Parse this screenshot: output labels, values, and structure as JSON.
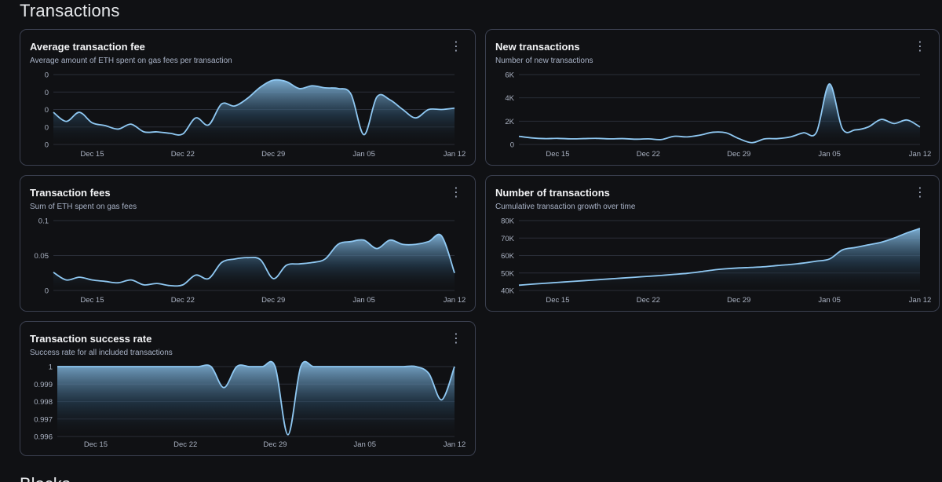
{
  "page": {
    "title": "Transactions",
    "next_section_title": "Blocks",
    "menu_icon": "more-vertical-icon"
  },
  "colors": {
    "line": "#8fc8f2",
    "fill_top": "#8fc8f2",
    "fill_bottom": "#101114",
    "grid": "#2a2e38",
    "card_border": "#3b4050"
  },
  "chart_data": [
    {
      "type": "area",
      "title": "Average transaction fee",
      "subtitle": "Average amount of ETH spent on gas fees per transaction",
      "x": [
        "Dec 12",
        "Dec 13",
        "Dec 14",
        "Dec 15",
        "Dec 16",
        "Dec 17",
        "Dec 18",
        "Dec 19",
        "Dec 20",
        "Dec 21",
        "Dec 22",
        "Dec 23",
        "Dec 24",
        "Dec 25",
        "Dec 26",
        "Dec 27",
        "Dec 28",
        "Dec 29",
        "Dec 30",
        "Dec 31",
        "Jan 01",
        "Jan 02",
        "Jan 03",
        "Jan 04",
        "Jan 05",
        "Jan 06",
        "Jan 07",
        "Jan 08",
        "Jan 09",
        "Jan 10",
        "Jan 11",
        "Jan 12"
      ],
      "x_ticks": [
        "Dec 15",
        "Dec 22",
        "Dec 29",
        "Jan 05",
        "Jan 12"
      ],
      "y_ticks": [
        "0",
        "0",
        "0",
        "0",
        "0"
      ],
      "ylim": [
        0,
        1
      ],
      "values": [
        0.46,
        0.33,
        0.46,
        0.31,
        0.27,
        0.22,
        0.29,
        0.18,
        0.18,
        0.16,
        0.15,
        0.38,
        0.28,
        0.58,
        0.55,
        0.66,
        0.82,
        0.92,
        0.9,
        0.8,
        0.84,
        0.81,
        0.8,
        0.72,
        0.14,
        0.68,
        0.64,
        0.5,
        0.38,
        0.5,
        0.5,
        0.52
      ]
    },
    {
      "type": "area",
      "title": "New transactions",
      "subtitle": "Number of new transactions",
      "x": [
        "Dec 12",
        "Dec 13",
        "Dec 14",
        "Dec 15",
        "Dec 16",
        "Dec 17",
        "Dec 18",
        "Dec 19",
        "Dec 20",
        "Dec 21",
        "Dec 22",
        "Dec 23",
        "Dec 24",
        "Dec 25",
        "Dec 26",
        "Dec 27",
        "Dec 28",
        "Dec 29",
        "Dec 30",
        "Dec 31",
        "Jan 01",
        "Jan 02",
        "Jan 03",
        "Jan 04",
        "Jan 05",
        "Jan 06",
        "Jan 07",
        "Jan 08",
        "Jan 09",
        "Jan 10",
        "Jan 11",
        "Jan 12"
      ],
      "x_ticks": [
        "Dec 15",
        "Dec 22",
        "Dec 29",
        "Jan 05",
        "Jan 12"
      ],
      "y_ticks": [
        "0",
        "2K",
        "4K",
        "6K"
      ],
      "ylim": [
        0,
        6000
      ],
      "values": [
        700,
        560,
        500,
        520,
        480,
        500,
        520,
        480,
        500,
        450,
        480,
        420,
        700,
        650,
        800,
        1050,
        1000,
        500,
        150,
        480,
        500,
        650,
        1000,
        1050,
        5200,
        1350,
        1250,
        1500,
        2150,
        1800,
        2100,
        1500
      ]
    },
    {
      "type": "area",
      "title": "Transaction fees",
      "subtitle": "Sum of ETH spent on gas fees",
      "x": [
        "Dec 12",
        "Dec 13",
        "Dec 14",
        "Dec 15",
        "Dec 16",
        "Dec 17",
        "Dec 18",
        "Dec 19",
        "Dec 20",
        "Dec 21",
        "Dec 22",
        "Dec 23",
        "Dec 24",
        "Dec 25",
        "Dec 26",
        "Dec 27",
        "Dec 28",
        "Dec 29",
        "Dec 30",
        "Dec 31",
        "Jan 01",
        "Jan 02",
        "Jan 03",
        "Jan 04",
        "Jan 05",
        "Jan 06",
        "Jan 07",
        "Jan 08",
        "Jan 09",
        "Jan 10",
        "Jan 11",
        "Jan 12"
      ],
      "x_ticks": [
        "Dec 15",
        "Dec 22",
        "Dec 29",
        "Jan 05",
        "Jan 12"
      ],
      "y_ticks": [
        "0",
        "0.05",
        "0.1"
      ],
      "ylim": [
        0,
        0.1
      ],
      "values": [
        0.026,
        0.015,
        0.019,
        0.015,
        0.013,
        0.011,
        0.015,
        0.008,
        0.01,
        0.007,
        0.008,
        0.022,
        0.017,
        0.04,
        0.045,
        0.047,
        0.044,
        0.017,
        0.036,
        0.038,
        0.04,
        0.045,
        0.066,
        0.07,
        0.072,
        0.06,
        0.072,
        0.066,
        0.066,
        0.07,
        0.078,
        0.025
      ]
    },
    {
      "type": "area",
      "title": "Number of transactions",
      "subtitle": "Cumulative transaction growth over time",
      "x": [
        "Dec 12",
        "Dec 13",
        "Dec 14",
        "Dec 15",
        "Dec 16",
        "Dec 17",
        "Dec 18",
        "Dec 19",
        "Dec 20",
        "Dec 21",
        "Dec 22",
        "Dec 23",
        "Dec 24",
        "Dec 25",
        "Dec 26",
        "Dec 27",
        "Dec 28",
        "Dec 29",
        "Dec 30",
        "Dec 31",
        "Jan 01",
        "Jan 02",
        "Jan 03",
        "Jan 04",
        "Jan 05",
        "Jan 06",
        "Jan 07",
        "Jan 08",
        "Jan 09",
        "Jan 10",
        "Jan 11",
        "Jan 12"
      ],
      "x_ticks": [
        "Dec 15",
        "Dec 22",
        "Dec 29",
        "Jan 05",
        "Jan 12"
      ],
      "y_ticks": [
        "40K",
        "50K",
        "60K",
        "70K",
        "80K"
      ],
      "ylim": [
        40000,
        80000
      ],
      "values": [
        43000,
        43600,
        44100,
        44600,
        45100,
        45600,
        46100,
        46600,
        47100,
        47600,
        48100,
        48600,
        49200,
        49800,
        50700,
        51700,
        52400,
        52900,
        53200,
        53600,
        54300,
        54900,
        55700,
        56800,
        58000,
        63200,
        64600,
        66100,
        67600,
        70000,
        73000,
        75500
      ]
    },
    {
      "type": "area",
      "title": "Transaction success rate",
      "subtitle": "Success rate for all included transactions",
      "x": [
        "Dec 12",
        "Dec 13",
        "Dec 14",
        "Dec 15",
        "Dec 16",
        "Dec 17",
        "Dec 18",
        "Dec 19",
        "Dec 20",
        "Dec 21",
        "Dec 22",
        "Dec 23",
        "Dec 24",
        "Dec 25",
        "Dec 26",
        "Dec 27",
        "Dec 28",
        "Dec 29",
        "Dec 30",
        "Dec 31",
        "Jan 01",
        "Jan 02",
        "Jan 03",
        "Jan 04",
        "Jan 05",
        "Jan 06",
        "Jan 07",
        "Jan 08",
        "Jan 09",
        "Jan 10",
        "Jan 11",
        "Jan 12"
      ],
      "x_ticks": [
        "Dec 15",
        "Dec 22",
        "Dec 29",
        "Jan 05",
        "Jan 12"
      ],
      "y_ticks": [
        "0.996",
        "0.997",
        "0.998",
        "0.999",
        "1"
      ],
      "ylim": [
        0.996,
        1
      ],
      "values": [
        1,
        1,
        1,
        1,
        1,
        1,
        1,
        1,
        1,
        1,
        1,
        1,
        1,
        0.9988,
        1,
        1,
        1,
        1,
        0.9961,
        1,
        1,
        1,
        1,
        1,
        1,
        1,
        1,
        1,
        1,
        0.9996,
        0.9981,
        1
      ]
    }
  ]
}
